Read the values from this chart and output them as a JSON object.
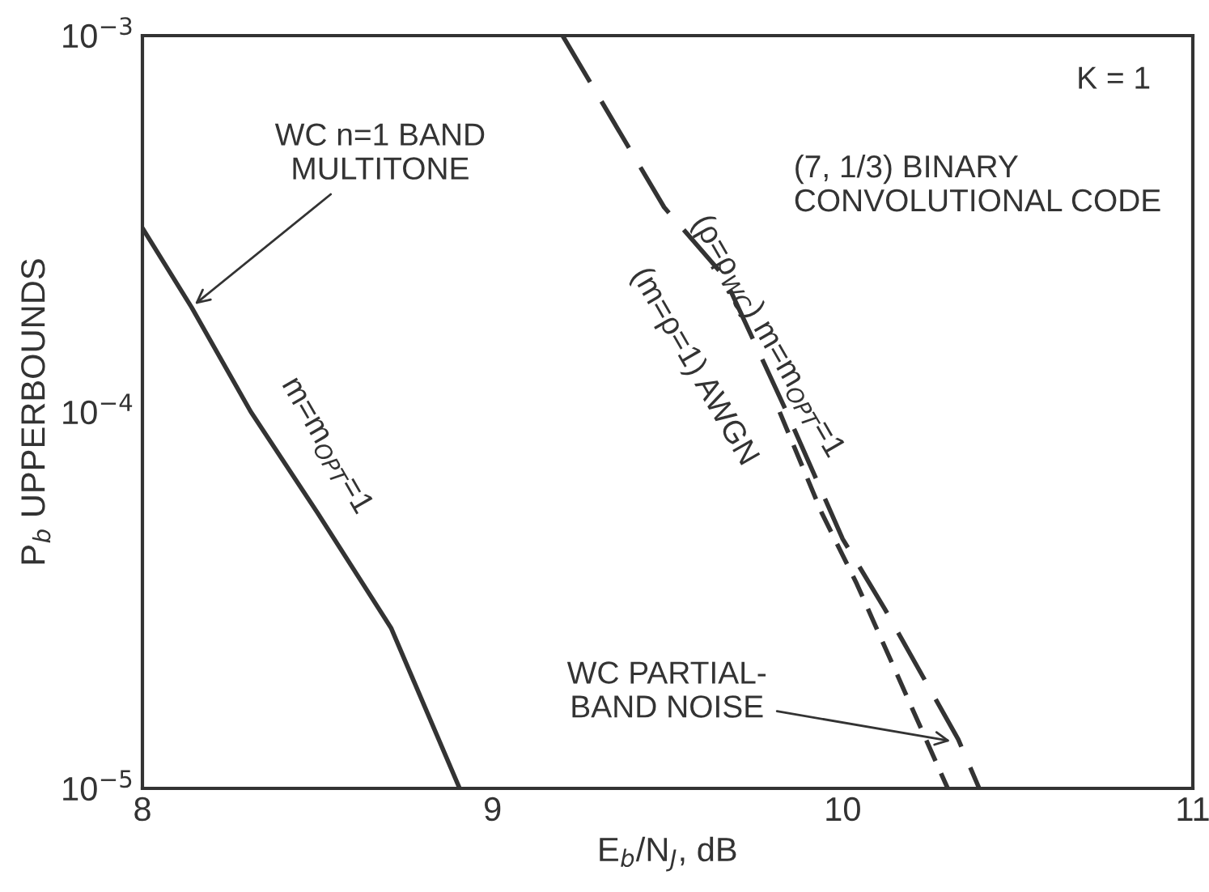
{
  "chart_data": {
    "type": "line",
    "xlabel": "E$_{b}$/N$_{J}$, dB",
    "ylabel": "P$_{b}$ UPPERBOUNDS",
    "log": "y",
    "xlim": [
      8,
      11
    ],
    "xticks": [
      8,
      9,
      10,
      11
    ],
    "ylim": [
      1e-05,
      0.001
    ],
    "yticks": [
      {
        "value": 1e-05,
        "label": "10$^{−5}$"
      },
      {
        "value": 0.0001,
        "label": "10$^{−4}$"
      },
      {
        "value": 0.001,
        "label": "10$^{−3}$"
      }
    ],
    "grid": false,
    "legend": false,
    "series": [
      {
        "color": "#333333",
        "line_style": "solid",
        "x": [
          8.0,
          8.14,
          8.31,
          8.5,
          8.71,
          8.906
        ],
        "values": [
          0.000308,
          0.00019,
          0.0001,
          5.4e-05,
          2.67e-05,
          1e-05
        ]
      },
      {
        "color": "#333333",
        "line_style": "dashed",
        "x": [
          9.2,
          9.49,
          9.66,
          9.84,
          10.0,
          10.12,
          10.33,
          10.39
        ],
        "values": [
          0.001,
          0.00035,
          0.00023,
          0.0001,
          4.6e-05,
          3e-05,
          1.35e-05,
          1e-05
        ]
      },
      {
        "color": "#333333",
        "line_style": "dashed",
        "x": [
          9.82,
          9.94,
          10.04,
          10.3
        ],
        "values": [
          0.0001,
          5.4e-05,
          3.5e-05,
          1e-05
        ]
      }
    ],
    "annotations": [
      "K = 1",
      "(7, 1/3) BINARY\nCONVOLUTIONAL CODE",
      {
        "text": "WC n=1 BAND\nMULTITONE",
        "x": 8.14,
        "y": 0.00019
      },
      {
        "text": "WC PARTIAL-\nBAND NOISE",
        "x": 10.32,
        "y": 1.33e-05
      },
      "m=m$_{OPT}$=1",
      "(ρ=ρ$_{WC}$) m=m$_{OPT}$=1",
      "(m=ρ=1) AWGN"
    ]
  }
}
